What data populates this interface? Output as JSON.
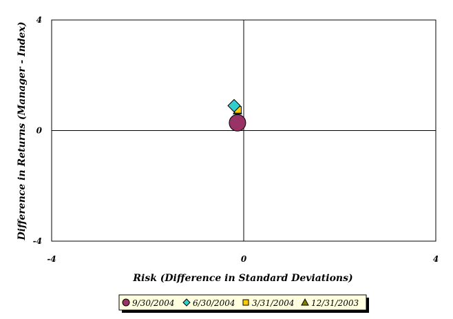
{
  "chart_data": {
    "type": "scatter",
    "xlabel": "Risk (Difference in Standard Deviations)",
    "ylabel": "Difference in Returns (Manager - Index)",
    "xlim": [
      -4,
      4
    ],
    "ylim": [
      -4,
      4
    ],
    "x_ticks": [
      {
        "value": -4,
        "label": "-4"
      },
      {
        "value": 0,
        "label": "0"
      },
      {
        "value": 4,
        "label": "4"
      }
    ],
    "y_ticks": [
      {
        "value": 4,
        "label": "4"
      },
      {
        "value": 0,
        "label": "0"
      },
      {
        "value": -4,
        "label": "-4"
      }
    ],
    "grid": false,
    "zero_lines": true,
    "legend_position": "bottom",
    "series": [
      {
        "name": "9/30/2004",
        "marker": "circle",
        "color": "#993366",
        "x": -0.13,
        "y": 0.28
      },
      {
        "name": "6/30/2004",
        "marker": "diamond",
        "color": "#33CCCC",
        "x": -0.2,
        "y": 0.9
      },
      {
        "name": "3/31/2004",
        "marker": "square",
        "color": "#FFCC00",
        "x": -0.12,
        "y": 0.75
      },
      {
        "name": "12/31/2003",
        "marker": "triangle",
        "color": "#808000",
        "x": -0.13,
        "y": 0.72
      }
    ]
  }
}
